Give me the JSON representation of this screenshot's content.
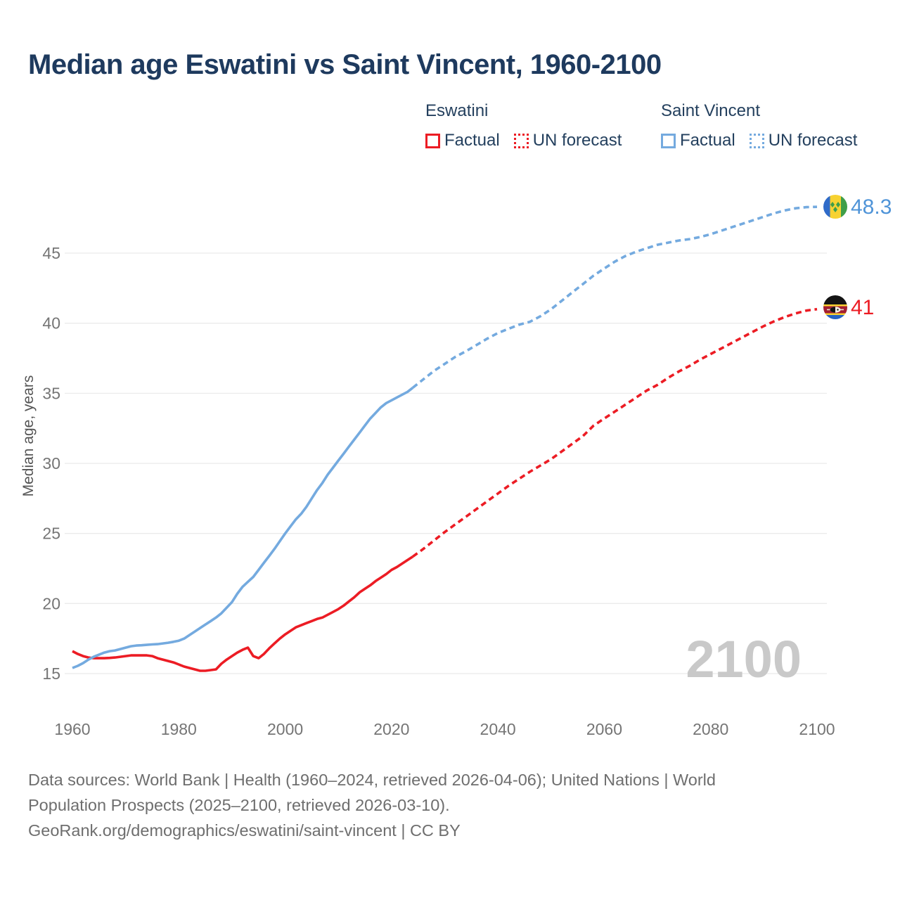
{
  "title": "Median age Eswatini vs Saint Vincent, 1960-2100",
  "watermark": "2100",
  "legend": {
    "groups": [
      {
        "name": "Eswatini",
        "color": "#ec1c24",
        "items": [
          {
            "label": "Factual",
            "style": "solid"
          },
          {
            "label": "UN forecast",
            "style": "dotted"
          }
        ]
      },
      {
        "name": "Saint Vincent",
        "color": "#74aadf",
        "items": [
          {
            "label": "Factual",
            "style": "solid"
          },
          {
            "label": "UN forecast",
            "style": "dotted"
          }
        ]
      }
    ]
  },
  "end_labels": [
    {
      "series": "Saint Vincent",
      "value": "48.3",
      "color": "#4f94d8",
      "flag": "saint-vincent-flag"
    },
    {
      "series": "Eswatini",
      "value": "41",
      "color": "#ec1c24",
      "flag": "eswatini-flag"
    }
  ],
  "footer": {
    "lines": [
      "Data sources: World Bank | Health (1960–2024, retrieved 2026-04-06); United Nations | World",
      "Population Prospects (2025–2100, retrieved 2026-03-10).",
      "GeoRank.org/demographics/eswatini/saint-vincent | CC BY"
    ]
  },
  "chart_data": {
    "type": "line",
    "title": "Median age Eswatini vs Saint Vincent, 1960-2100",
    "xlabel": "",
    "ylabel": "Median age, years",
    "x_ticks": [
      1960,
      1980,
      2000,
      2020,
      2040,
      2060,
      2080,
      2100
    ],
    "y_ticks": [
      15,
      20,
      25,
      30,
      35,
      40,
      45
    ],
    "xlim": [
      1958,
      2112
    ],
    "ylim": [
      13.5,
      50
    ],
    "grid": true,
    "legend_position": "top-right",
    "series": [
      {
        "name": "Eswatini Factual",
        "color": "#ec1c24",
        "style": "solid",
        "points": [
          [
            1960,
            16.6
          ],
          [
            1961,
            16.4
          ],
          [
            1962,
            16.25
          ],
          [
            1963,
            16.15
          ],
          [
            1964,
            16.1
          ],
          [
            1965,
            16.1
          ],
          [
            1966,
            16.1
          ],
          [
            1967,
            16.12
          ],
          [
            1968,
            16.15
          ],
          [
            1969,
            16.2
          ],
          [
            1970,
            16.25
          ],
          [
            1971,
            16.3
          ],
          [
            1972,
            16.3
          ],
          [
            1973,
            16.3
          ],
          [
            1974,
            16.3
          ],
          [
            1975,
            16.25
          ],
          [
            1976,
            16.1
          ],
          [
            1977,
            16.0
          ],
          [
            1978,
            15.9
          ],
          [
            1979,
            15.8
          ],
          [
            1980,
            15.65
          ],
          [
            1981,
            15.5
          ],
          [
            1982,
            15.4
          ],
          [
            1983,
            15.3
          ],
          [
            1984,
            15.2
          ],
          [
            1985,
            15.2
          ],
          [
            1986,
            15.25
          ],
          [
            1987,
            15.3
          ],
          [
            1988,
            15.7
          ],
          [
            1989,
            16.0
          ],
          [
            1990,
            16.25
          ],
          [
            1991,
            16.5
          ],
          [
            1992,
            16.7
          ],
          [
            1993,
            16.85
          ],
          [
            1994,
            16.25
          ],
          [
            1995,
            16.1
          ],
          [
            1996,
            16.4
          ],
          [
            1997,
            16.8
          ],
          [
            1998,
            17.15
          ],
          [
            1999,
            17.5
          ],
          [
            2000,
            17.8
          ],
          [
            2001,
            18.05
          ],
          [
            2002,
            18.3
          ],
          [
            2003,
            18.45
          ],
          [
            2004,
            18.6
          ],
          [
            2005,
            18.75
          ],
          [
            2006,
            18.9
          ],
          [
            2007,
            19.0
          ],
          [
            2008,
            19.2
          ],
          [
            2009,
            19.4
          ],
          [
            2010,
            19.6
          ],
          [
            2011,
            19.85
          ],
          [
            2012,
            20.15
          ],
          [
            2013,
            20.45
          ],
          [
            2014,
            20.8
          ],
          [
            2015,
            21.05
          ],
          [
            2016,
            21.3
          ],
          [
            2017,
            21.6
          ],
          [
            2018,
            21.85
          ],
          [
            2019,
            22.1
          ],
          [
            2020,
            22.4
          ],
          [
            2021,
            22.6
          ],
          [
            2022,
            22.85
          ],
          [
            2023,
            23.1
          ],
          [
            2024,
            23.35
          ]
        ]
      },
      {
        "name": "Eswatini UN forecast",
        "color": "#ec1c24",
        "style": "dashed",
        "points": [
          [
            2024,
            23.35
          ],
          [
            2026,
            23.9
          ],
          [
            2028,
            24.5
          ],
          [
            2030,
            25.1
          ],
          [
            2032,
            25.65
          ],
          [
            2034,
            26.2
          ],
          [
            2036,
            26.75
          ],
          [
            2038,
            27.3
          ],
          [
            2040,
            27.85
          ],
          [
            2042,
            28.4
          ],
          [
            2044,
            28.9
          ],
          [
            2046,
            29.4
          ],
          [
            2048,
            29.85
          ],
          [
            2050,
            30.3
          ],
          [
            2052,
            30.85
          ],
          [
            2054,
            31.4
          ],
          [
            2056,
            31.95
          ],
          [
            2058,
            32.7
          ],
          [
            2060,
            33.2
          ],
          [
            2062,
            33.7
          ],
          [
            2064,
            34.2
          ],
          [
            2066,
            34.7
          ],
          [
            2068,
            35.2
          ],
          [
            2070,
            35.6
          ],
          [
            2072,
            36.1
          ],
          [
            2074,
            36.55
          ],
          [
            2076,
            36.95
          ],
          [
            2078,
            37.4
          ],
          [
            2080,
            37.8
          ],
          [
            2082,
            38.2
          ],
          [
            2084,
            38.6
          ],
          [
            2086,
            39.0
          ],
          [
            2088,
            39.4
          ],
          [
            2090,
            39.8
          ],
          [
            2092,
            40.15
          ],
          [
            2094,
            40.45
          ],
          [
            2096,
            40.7
          ],
          [
            2098,
            40.9
          ],
          [
            2100,
            41.0
          ]
        ]
      },
      {
        "name": "Saint Vincent Factual",
        "color": "#74aadf",
        "style": "solid",
        "points": [
          [
            1960,
            15.4
          ],
          [
            1961,
            15.55
          ],
          [
            1962,
            15.75
          ],
          [
            1963,
            16.0
          ],
          [
            1964,
            16.2
          ],
          [
            1965,
            16.35
          ],
          [
            1966,
            16.5
          ],
          [
            1967,
            16.6
          ],
          [
            1968,
            16.65
          ],
          [
            1969,
            16.75
          ],
          [
            1970,
            16.85
          ],
          [
            1971,
            16.95
          ],
          [
            1972,
            17.0
          ],
          [
            1973,
            17.02
          ],
          [
            1974,
            17.05
          ],
          [
            1975,
            17.08
          ],
          [
            1976,
            17.1
          ],
          [
            1977,
            17.15
          ],
          [
            1978,
            17.2
          ],
          [
            1979,
            17.27
          ],
          [
            1980,
            17.35
          ],
          [
            1981,
            17.5
          ],
          [
            1982,
            17.75
          ],
          [
            1983,
            18.0
          ],
          [
            1984,
            18.25
          ],
          [
            1985,
            18.5
          ],
          [
            1986,
            18.75
          ],
          [
            1987,
            19.0
          ],
          [
            1988,
            19.3
          ],
          [
            1989,
            19.7
          ],
          [
            1990,
            20.1
          ],
          [
            1991,
            20.7
          ],
          [
            1992,
            21.2
          ],
          [
            1993,
            21.55
          ],
          [
            1994,
            21.9
          ],
          [
            1995,
            22.4
          ],
          [
            1996,
            22.9
          ],
          [
            1997,
            23.4
          ],
          [
            1998,
            23.9
          ],
          [
            1999,
            24.45
          ],
          [
            2000,
            25.0
          ],
          [
            2001,
            25.5
          ],
          [
            2002,
            26.0
          ],
          [
            2003,
            26.4
          ],
          [
            2004,
            26.9
          ],
          [
            2005,
            27.5
          ],
          [
            2006,
            28.1
          ],
          [
            2007,
            28.6
          ],
          [
            2008,
            29.2
          ],
          [
            2009,
            29.7
          ],
          [
            2010,
            30.2
          ],
          [
            2011,
            30.7
          ],
          [
            2012,
            31.2
          ],
          [
            2013,
            31.7
          ],
          [
            2014,
            32.2
          ],
          [
            2015,
            32.7
          ],
          [
            2016,
            33.2
          ],
          [
            2017,
            33.6
          ],
          [
            2018,
            34.0
          ],
          [
            2019,
            34.3
          ],
          [
            2020,
            34.5
          ],
          [
            2021,
            34.7
          ],
          [
            2022,
            34.9
          ],
          [
            2023,
            35.1
          ],
          [
            2024,
            35.4
          ]
        ]
      },
      {
        "name": "Saint Vincent UN forecast",
        "color": "#74aadf",
        "style": "dashed",
        "points": [
          [
            2024,
            35.4
          ],
          [
            2026,
            36.0
          ],
          [
            2028,
            36.6
          ],
          [
            2030,
            37.1
          ],
          [
            2032,
            37.6
          ],
          [
            2034,
            38.0
          ],
          [
            2036,
            38.45
          ],
          [
            2038,
            38.9
          ],
          [
            2040,
            39.3
          ],
          [
            2042,
            39.6
          ],
          [
            2044,
            39.9
          ],
          [
            2046,
            40.1
          ],
          [
            2048,
            40.5
          ],
          [
            2050,
            41.0
          ],
          [
            2052,
            41.6
          ],
          [
            2054,
            42.2
          ],
          [
            2056,
            42.8
          ],
          [
            2058,
            43.4
          ],
          [
            2060,
            43.9
          ],
          [
            2062,
            44.4
          ],
          [
            2064,
            44.8
          ],
          [
            2066,
            45.1
          ],
          [
            2068,
            45.35
          ],
          [
            2070,
            45.6
          ],
          [
            2072,
            45.75
          ],
          [
            2074,
            45.9
          ],
          [
            2076,
            46.0
          ],
          [
            2078,
            46.15
          ],
          [
            2080,
            46.35
          ],
          [
            2082,
            46.6
          ],
          [
            2084,
            46.85
          ],
          [
            2086,
            47.1
          ],
          [
            2088,
            47.35
          ],
          [
            2090,
            47.6
          ],
          [
            2092,
            47.85
          ],
          [
            2094,
            48.05
          ],
          [
            2096,
            48.2
          ],
          [
            2098,
            48.28
          ],
          [
            2100,
            48.3
          ]
        ]
      }
    ]
  }
}
